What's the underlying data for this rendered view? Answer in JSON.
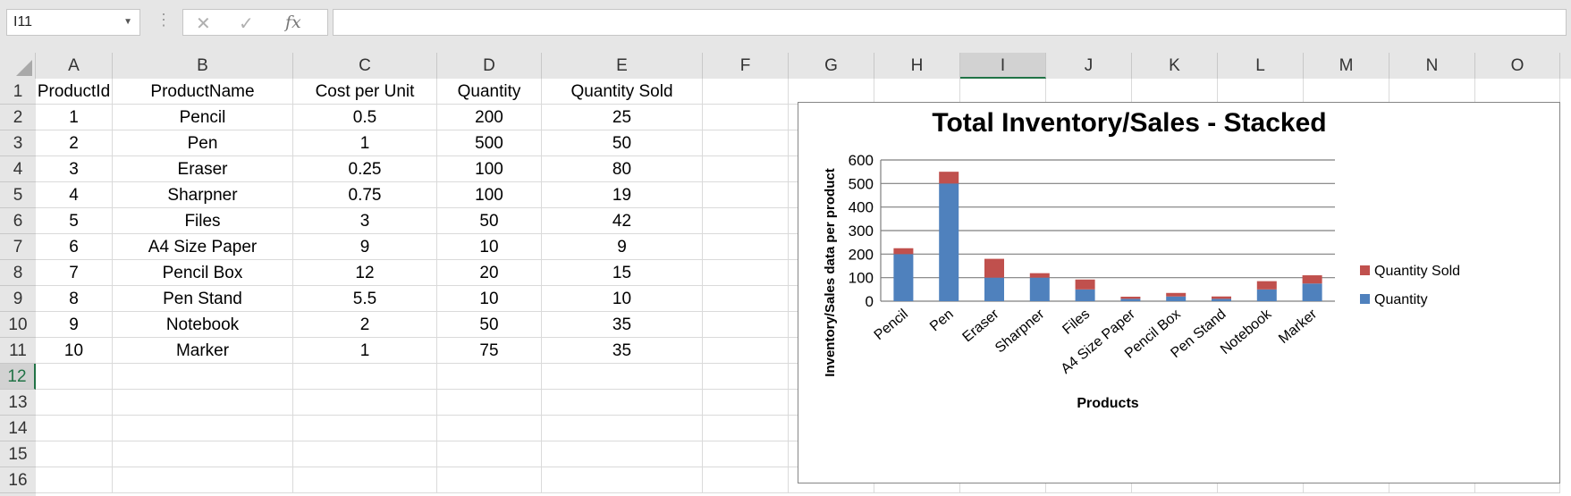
{
  "formula_bar": {
    "name_box": "I11",
    "cancel_glyph": "✕",
    "enter_glyph": "✓",
    "fx_label": "fx",
    "formula": ""
  },
  "grid": {
    "columns": [
      "A",
      "B",
      "C",
      "D",
      "E",
      "F",
      "G",
      "H",
      "I",
      "J",
      "K",
      "L",
      "M",
      "N",
      "O"
    ],
    "active_column": "I",
    "rows": [
      "1",
      "2",
      "3",
      "4",
      "5",
      "6",
      "7",
      "8",
      "9",
      "10",
      "11",
      "12",
      "13",
      "14",
      "15",
      "16"
    ],
    "active_row": "12",
    "headers": [
      "ProductId",
      "ProductName",
      "Cost per Unit",
      "Quantity",
      "Quantity Sold"
    ],
    "data": [
      [
        "1",
        "Pencil",
        "0.5",
        "200",
        "25"
      ],
      [
        "2",
        "Pen",
        "1",
        "500",
        "50"
      ],
      [
        "3",
        "Eraser",
        "0.25",
        "100",
        "80"
      ],
      [
        "4",
        "Sharpner",
        "0.75",
        "100",
        "19"
      ],
      [
        "5",
        "Files",
        "3",
        "50",
        "42"
      ],
      [
        "6",
        "A4 Size Paper",
        "9",
        "10",
        "9"
      ],
      [
        "7",
        "Pencil Box",
        "12",
        "20",
        "15"
      ],
      [
        "8",
        "Pen Stand",
        "5.5",
        "10",
        "10"
      ],
      [
        "9",
        "Notebook",
        "2",
        "50",
        "35"
      ],
      [
        "10",
        "Marker",
        "1",
        "75",
        "35"
      ]
    ]
  },
  "chart_data": {
    "type": "bar",
    "stacked": true,
    "title": "Total Inventory/Sales - Stacked",
    "xlabel": "Products",
    "ylabel": "Inventory/Sales data per product",
    "ylim": [
      0,
      600
    ],
    "yticks": [
      "0",
      "100",
      "200",
      "300",
      "400",
      "500",
      "600"
    ],
    "grid": true,
    "legend": "right",
    "categories": [
      "Pencil",
      "Pen",
      "Eraser",
      "Sharpner",
      "Files",
      "A4 Size Paper",
      "Pencil Box",
      "Pen Stand",
      "Notebook",
      "Marker"
    ],
    "series": [
      {
        "name": "Quantity",
        "color": "#4f81bd",
        "values": [
          200,
          500,
          100,
          100,
          50,
          10,
          20,
          10,
          50,
          75
        ]
      },
      {
        "name": "Quantity Sold",
        "color": "#c0504d",
        "values": [
          25,
          50,
          80,
          19,
          42,
          9,
          15,
          10,
          35,
          35
        ]
      }
    ]
  }
}
